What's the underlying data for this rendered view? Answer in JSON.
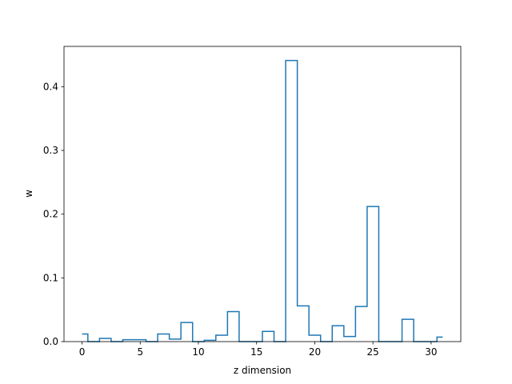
{
  "chart_data": {
    "type": "step",
    "title": "",
    "xlabel": "z dimension",
    "ylabel": "w",
    "xlim": [
      -1.55,
      32.55
    ],
    "ylim": [
      0,
      0.4632
    ],
    "xticks": [
      0,
      5,
      10,
      15,
      20,
      25,
      30
    ],
    "yticks": [
      0.0,
      0.1,
      0.2,
      0.3,
      0.4
    ],
    "ytick_labels": [
      "0.0",
      "0.1",
      "0.2",
      "0.3",
      "0.4"
    ],
    "grid": false,
    "legend": "none",
    "line_color": "#1f77b4",
    "step_where": "mid",
    "x": [
      0,
      1,
      2,
      3,
      4,
      5,
      6,
      7,
      8,
      9,
      10,
      11,
      12,
      13,
      14,
      15,
      16,
      17,
      18,
      19,
      20,
      21,
      22,
      23,
      24,
      25,
      26,
      27,
      28,
      29,
      30,
      31
    ],
    "values": [
      0.012,
      0.0,
      0.005,
      0.0,
      0.003,
      0.003,
      0.0,
      0.012,
      0.004,
      0.03,
      0.0,
      0.002,
      0.01,
      0.047,
      0.0,
      0.0,
      0.016,
      0.0,
      0.441,
      0.056,
      0.01,
      0.0,
      0.025,
      0.008,
      0.055,
      0.212,
      0.0,
      0.0,
      0.035,
      0.0,
      0.0,
      0.007
    ]
  }
}
